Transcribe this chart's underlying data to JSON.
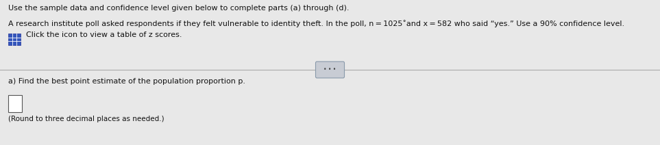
{
  "line1": "Use the sample data and confidence level given below to complete parts (a) through (d).",
  "line2": "A research institute poll asked respondents if they felt vulnerable to identity theft. In the poll, n = 1025˚and x = 582 who said “yes.” Use a 90% confidence level.",
  "line3": "Click the icon to view a table of z scores.",
  "part_a": "a) Find the best point estimate of the population proportion p.",
  "round_note": "(Round to three decimal places as needed.)",
  "bg_color": "#e8e8e8",
  "panel_color": "#d8d8d8",
  "text_color": "#111111",
  "icon_color": "#3355bb",
  "divider_color": "#aaaaaa",
  "ellipsis_bg": "#c8ccd4",
  "ellipsis_border": "#8899aa"
}
